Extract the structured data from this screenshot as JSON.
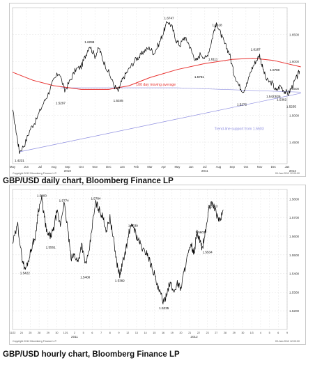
{
  "captions": {
    "daily": "GBP/USD daily chart, Bloomberg Finance LP",
    "hourly": "GBP/USD hourly chart, Bloomberg Finance LP"
  },
  "colors": {
    "price": "#000000",
    "ma": "#e8302e",
    "trend": "#8e8ee0",
    "grid": "#e6e6e6",
    "text": "#333333"
  },
  "chart_data": [
    {
      "type": "line",
      "name": "daily",
      "y_scale": [
        1.41,
        1.7
      ],
      "y_ticks": [
        1.45,
        1.5,
        1.55,
        1.6,
        1.65
      ],
      "x_ticks": [
        "May",
        "Jun",
        "Jul",
        "Aug",
        "Sep",
        "Oct",
        "Nov",
        "Dec",
        "Jan",
        "Feb",
        "Mar",
        "Apr",
        "May",
        "Jun",
        "Jul",
        "Aug",
        "Sep",
        "Oct",
        "Nov",
        "Dec",
        "Jan"
      ],
      "year_labels": [
        {
          "label": "2010",
          "at": 4
        },
        {
          "label": "2011",
          "at": 14
        },
        {
          "label": "2012",
          "at": 20.4
        }
      ],
      "price": [
        [
          0,
          1.51
        ],
        [
          0.3,
          1.465
        ],
        [
          0.5,
          1.432
        ],
        [
          0.9,
          1.447
        ],
        [
          1.3,
          1.475
        ],
        [
          1.7,
          1.49
        ],
        [
          2.2,
          1.52
        ],
        [
          2.6,
          1.54
        ],
        [
          3.0,
          1.565
        ],
        [
          3.4,
          1.58
        ],
        [
          3.8,
          1.545
        ],
        [
          4.2,
          1.565
        ],
        [
          4.6,
          1.585
        ],
        [
          5.0,
          1.59
        ],
        [
          5.3,
          1.61
        ],
        [
          5.6,
          1.63
        ],
        [
          6.0,
          1.61
        ],
        [
          6.3,
          1.625
        ],
        [
          6.6,
          1.602
        ],
        [
          7.0,
          1.58
        ],
        [
          7.4,
          1.555
        ],
        [
          7.7,
          1.545
        ],
        [
          7.9,
          1.56
        ],
        [
          8.2,
          1.575
        ],
        [
          8.6,
          1.59
        ],
        [
          9.0,
          1.605
        ],
        [
          9.3,
          1.61
        ],
        [
          9.6,
          1.62
        ],
        [
          10.0,
          1.625
        ],
        [
          10.3,
          1.615
        ],
        [
          10.7,
          1.635
        ],
        [
          11.0,
          1.655
        ],
        [
          11.3,
          1.675
        ],
        [
          11.6,
          1.665
        ],
        [
          11.9,
          1.64
        ],
        [
          12.2,
          1.63
        ],
        [
          12.5,
          1.645
        ],
        [
          12.8,
          1.635
        ],
        [
          13.1,
          1.615
        ],
        [
          13.4,
          1.6
        ],
        [
          13.7,
          1.615
        ],
        [
          14.1,
          1.605
        ],
        [
          14.4,
          1.628
        ],
        [
          14.7,
          1.66
        ],
        [
          14.9,
          1.67
        ],
        [
          15.2,
          1.648
        ],
        [
          15.5,
          1.63
        ],
        [
          15.8,
          1.615
        ],
        [
          16.1,
          1.58
        ],
        [
          16.5,
          1.555
        ],
        [
          16.8,
          1.545
        ],
        [
          17.1,
          1.56
        ],
        [
          17.4,
          1.585
        ],
        [
          17.7,
          1.6
        ],
        [
          18.0,
          1.612
        ],
        [
          18.2,
          1.59
        ],
        [
          18.5,
          1.565
        ],
        [
          18.9,
          1.56
        ],
        [
          19.2,
          1.545
        ],
        [
          19.5,
          1.555
        ],
        [
          19.8,
          1.545
        ],
        [
          20.1,
          1.54
        ],
        [
          20.4,
          1.555
        ],
        [
          20.7,
          1.57
        ],
        [
          20.9,
          1.582
        ]
      ],
      "ma_100": [
        [
          0,
          1.58
        ],
        [
          1.5,
          1.565
        ],
        [
          3,
          1.555
        ],
        [
          5,
          1.548
        ],
        [
          7,
          1.548
        ],
        [
          8.5,
          1.555
        ],
        [
          10,
          1.57
        ],
        [
          12,
          1.585
        ],
        [
          14,
          1.596
        ],
        [
          16,
          1.604
        ],
        [
          17.5,
          1.606
        ],
        [
          19,
          1.602
        ],
        [
          21,
          1.59
        ]
      ],
      "trendline": [
        [
          0.5,
          1.432
        ],
        [
          21,
          1.541
        ]
      ],
      "lower_line": [
        [
          3.5,
          1.551
        ],
        [
          12,
          1.551
        ],
        [
          21,
          1.543
        ]
      ],
      "labels": [
        {
          "text": "1.6747",
          "x": 11.4,
          "y": 1.6747
        },
        {
          "text": "1.6618",
          "x": 14.9,
          "y": 1.6618
        },
        {
          "text": "1.6299",
          "x": 5.6,
          "y": 1.6299
        },
        {
          "text": "1.6167",
          "x": 17.7,
          "y": 1.6167
        },
        {
          "text": "1.6111",
          "x": 14.6,
          "y": 1.6111,
          "below": true
        },
        {
          "text": "1.5780",
          "x": 19.1,
          "y": 1.578
        },
        {
          "text": "1.5781",
          "x": 13.6,
          "y": 1.5781,
          "below": true
        },
        {
          "text": "1.5423/26",
          "x": 19.0,
          "y": 1.5423,
          "below": true
        },
        {
          "text": "1.5362",
          "x": 19.6,
          "y": 1.5362,
          "below": true
        },
        {
          "text": "1.5272",
          "x": 16.7,
          "y": 1.5272,
          "below": true
        },
        {
          "text": "1.5235",
          "x": 20.3,
          "y": 1.5235,
          "below": true
        },
        {
          "text": "1.5297",
          "x": 3.5,
          "y": 1.5297,
          "below": true
        },
        {
          "text": "1.5345",
          "x": 7.7,
          "y": 1.5345,
          "below": true
        },
        {
          "text": "1.4231",
          "x": 0.5,
          "y": 1.4231,
          "below": true
        }
      ],
      "annotations": [
        {
          "text": "100 day moving average",
          "x": 9.0,
          "y": 1.555,
          "color": "#e8302e"
        },
        {
          "text": "Trend-line support from 1.5503",
          "x": 14.7,
          "y": 1.473,
          "color": "#8e8ee0"
        }
      ],
      "footer": "Copyright 2012 Bloomberg Finance L.P.",
      "footer_right": "09-Jan-2012 12:00:00"
    },
    {
      "type": "line",
      "name": "hourly",
      "y_scale": [
        1.51,
        1.585
      ],
      "y_ticks": [
        1.52,
        1.53,
        1.54,
        1.55,
        1.56,
        1.57,
        1.58
      ],
      "x_ticks": [
        "11/22",
        "24",
        "25",
        "28",
        "29",
        "30",
        "12/1",
        "2",
        "5",
        "6",
        "7",
        "8",
        "9",
        "12",
        "13",
        "14",
        "15",
        "16",
        "19",
        "20",
        "21",
        "22",
        "23",
        "27",
        "28",
        "29",
        "30",
        "1/3",
        "4",
        "5",
        "6",
        "9"
      ],
      "year_labels": [
        {
          "label": "2011",
          "at": 7
        },
        {
          "label": "2012",
          "at": 20.5
        }
      ],
      "price": [
        [
          0,
          1.556
        ],
        [
          0.6,
          1.566
        ],
        [
          1.0,
          1.55
        ],
        [
          1.4,
          1.542
        ],
        [
          1.8,
          1.547
        ],
        [
          2.2,
          1.555
        ],
        [
          2.6,
          1.56
        ],
        [
          2.9,
          1.574
        ],
        [
          3.3,
          1.58
        ],
        [
          3.6,
          1.57
        ],
        [
          3.9,
          1.561
        ],
        [
          4.3,
          1.56
        ],
        [
          4.6,
          1.563
        ],
        [
          5.0,
          1.573
        ],
        [
          5.4,
          1.566
        ],
        [
          5.8,
          1.578
        ],
        [
          6.2,
          1.565
        ],
        [
          6.6,
          1.548
        ],
        [
          7.0,
          1.55
        ],
        [
          7.4,
          1.546
        ],
        [
          7.8,
          1.556
        ],
        [
          8.2,
          1.545
        ],
        [
          8.6,
          1.55
        ],
        [
          9.0,
          1.566
        ],
        [
          9.4,
          1.578
        ],
        [
          9.8,
          1.574
        ],
        [
          10.2,
          1.57
        ],
        [
          10.6,
          1.563
        ],
        [
          11.0,
          1.57
        ],
        [
          11.4,
          1.558
        ],
        [
          11.8,
          1.545
        ],
        [
          12.1,
          1.539
        ],
        [
          12.4,
          1.545
        ],
        [
          12.8,
          1.553
        ],
        [
          13.2,
          1.563
        ],
        [
          13.6,
          1.566
        ],
        [
          14.0,
          1.56
        ],
        [
          14.4,
          1.556
        ],
        [
          14.8,
          1.552
        ],
        [
          15.2,
          1.551
        ],
        [
          15.6,
          1.545
        ],
        [
          16.0,
          1.54
        ],
        [
          16.4,
          1.532
        ],
        [
          16.8,
          1.528
        ],
        [
          17.1,
          1.524
        ],
        [
          17.4,
          1.53
        ],
        [
          17.8,
          1.535
        ],
        [
          18.2,
          1.53
        ],
        [
          18.6,
          1.535
        ],
        [
          19.0,
          1.532
        ],
        [
          19.4,
          1.542
        ],
        [
          19.8,
          1.55
        ],
        [
          20.2,
          1.555
        ],
        [
          20.5,
          1.55
        ],
        [
          20.8,
          1.562
        ],
        [
          21.1,
          1.558
        ],
        [
          21.4,
          1.553
        ],
        [
          21.8,
          1.563
        ],
        [
          22.2,
          1.575
        ],
        [
          22.6,
          1.578
        ],
        [
          23.0,
          1.572
        ],
        [
          23.4,
          1.568
        ],
        [
          23.8,
          1.574
        ]
      ],
      "labels": [
        {
          "text": "1.5800",
          "x": 3.3,
          "y": 1.58
        },
        {
          "text": "1.5774",
          "x": 5.8,
          "y": 1.5774
        },
        {
          "text": "1.5784",
          "x": 9.4,
          "y": 1.5784
        },
        {
          "text": "1.5743",
          "x": 22.6,
          "y": 1.5743
        },
        {
          "text": "1.5639",
          "x": 13.6,
          "y": 1.5639
        },
        {
          "text": "1.5603",
          "x": 21.2,
          "y": 1.5603
        },
        {
          "text": "1.5561",
          "x": 4.3,
          "y": 1.5561,
          "below": true
        },
        {
          "text": "1.5534",
          "x": 22.0,
          "y": 1.5534,
          "below": true
        },
        {
          "text": "1.5422",
          "x": 1.4,
          "y": 1.5422,
          "below": true
        },
        {
          "text": "1.5400",
          "x": 8.2,
          "y": 1.54,
          "below": true
        },
        {
          "text": "1.5382",
          "x": 12.1,
          "y": 1.5382,
          "below": true
        },
        {
          "text": "1.5235",
          "x": 17.1,
          "y": 1.5235,
          "below": true
        }
      ],
      "footer": "Copyright 2012 Bloomberg Finance L.P.",
      "footer_right": "09-Jan-2012 12:00:00"
    }
  ]
}
